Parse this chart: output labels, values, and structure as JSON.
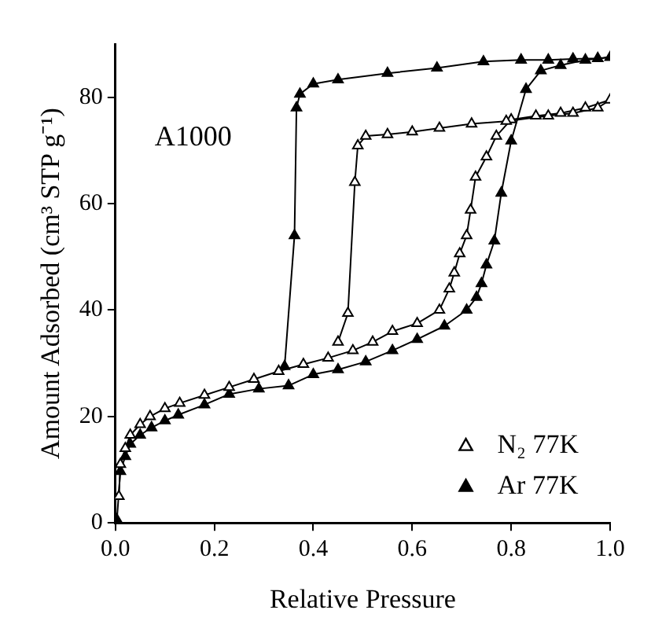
{
  "chart_data": {
    "type": "line",
    "xlabel": "Relative Pressure",
    "ylabel": "Amount Adsorbed (cm³ STP g⁻¹)",
    "annotations": [
      "A1000"
    ],
    "xlim": [
      0,
      1
    ],
    "ylim": [
      0,
      90
    ],
    "xticks": [
      {
        "value": 0,
        "label": "0.0"
      },
      {
        "value": 0.2,
        "label": "0.2"
      },
      {
        "value": 0.4,
        "label": "0.4"
      },
      {
        "value": 0.6,
        "label": "0.6"
      },
      {
        "value": 0.8,
        "label": "0.8"
      },
      {
        "value": 1,
        "label": "1.0"
      }
    ],
    "yticks": [
      0,
      20,
      40,
      60,
      80
    ],
    "grid": false,
    "legend": "bottom right",
    "marker": "triangle",
    "line_style": "solid",
    "series": [
      {
        "name": "N₂ 77K",
        "color": "#000000",
        "x": [
          0.007,
          0.01,
          0.02,
          0.03,
          0.05,
          0.07,
          0.1,
          0.13,
          0.18,
          0.23,
          0.28,
          0.33,
          0.38,
          0.43,
          0.48,
          0.52,
          0.56,
          0.61,
          0.655,
          0.675,
          0.685,
          0.696,
          0.71,
          0.718,
          0.728,
          0.75,
          0.77,
          0.8,
          0.85,
          0.9,
          0.95,
          1.0,
          0.975,
          0.925,
          0.875,
          0.79,
          0.72,
          0.655,
          0.6,
          0.55,
          0.506,
          0.49,
          0.484,
          0.47,
          0.45
        ],
        "values": [
          5,
          11,
          14,
          16.5,
          18.5,
          20,
          21.5,
          22.5,
          24,
          25.5,
          27,
          28.5,
          29.8,
          31,
          32.4,
          34,
          36,
          37.5,
          40,
          44,
          47,
          50.6,
          54,
          58.8,
          65,
          68.8,
          72.7,
          75.8,
          76.5,
          77,
          78,
          79.5,
          78,
          77,
          76.5,
          75.5,
          75,
          74.2,
          73.5,
          73,
          72.7,
          70.9,
          64,
          39.4,
          34
        ]
      },
      {
        "name": "Ar 77K",
        "color": "#000000",
        "x": [
          0.003,
          0.01,
          0.02,
          0.03,
          0.05,
          0.073,
          0.1,
          0.127,
          0.18,
          0.23,
          0.29,
          0.35,
          0.4,
          0.45,
          0.506,
          0.56,
          0.61,
          0.665,
          0.71,
          0.73,
          0.74,
          0.75,
          0.766,
          0.78,
          0.8,
          0.83,
          0.86,
          0.9,
          0.95,
          1.0,
          0.975,
          0.925,
          0.875,
          0.82,
          0.744,
          0.65,
          0.55,
          0.45,
          0.4,
          0.373,
          0.366,
          0.362,
          0.342
        ],
        "values": [
          0.6,
          9.7,
          12.5,
          14.8,
          16.5,
          17.9,
          19.2,
          20.3,
          22.2,
          24.2,
          25.2,
          25.8,
          27.9,
          28.8,
          30.3,
          32.4,
          34.5,
          37,
          40,
          42.4,
          45,
          48.5,
          53,
          62,
          71.8,
          81.5,
          85,
          86,
          87,
          87.5,
          87.3,
          87.2,
          87,
          87,
          86.7,
          85.5,
          84.5,
          83.3,
          82.5,
          80.6,
          78,
          54,
          29.4
        ]
      }
    ]
  }
}
